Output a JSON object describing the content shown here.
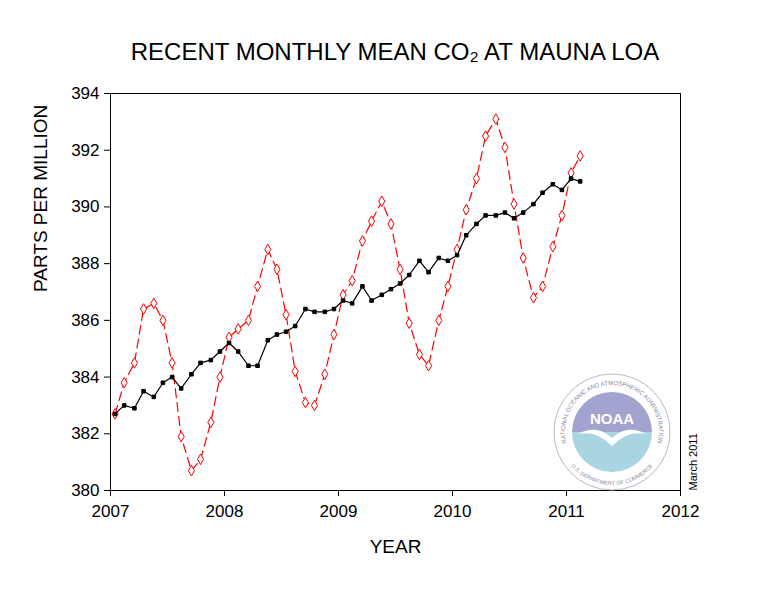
{
  "chart_data": {
    "type": "line",
    "title": "RECENT MONTHLY MEAN CO₂ AT MAUNA LOA",
    "x_label": "YEAR",
    "y_label": "PARTS PER MILLION",
    "annotations": [
      "March 2011",
      "NOAA",
      "NATIONAL OCEANIC AND ATMOSPHERIC ADMINISTRATION",
      "U.S. DEPARTMENT OF COMMERCE"
    ],
    "x": [
      2007.04,
      2007.12,
      2007.21,
      2007.29,
      2007.38,
      2007.46,
      2007.54,
      2007.62,
      2007.71,
      2007.79,
      2007.88,
      2007.96,
      2008.04,
      2008.12,
      2008.21,
      2008.29,
      2008.38,
      2008.46,
      2008.54,
      2008.62,
      2008.71,
      2008.79,
      2008.88,
      2008.96,
      2009.04,
      2009.12,
      2009.21,
      2009.29,
      2009.38,
      2009.46,
      2009.54,
      2009.62,
      2009.71,
      2009.79,
      2009.88,
      2009.96,
      2010.04,
      2010.12,
      2010.21,
      2010.29,
      2010.38,
      2010.46,
      2010.54,
      2010.62,
      2010.71,
      2010.79,
      2010.88,
      2010.96,
      2011.04,
      2011.12
    ],
    "series": [
      {
        "color": "#ff0000",
        "line_style": "dashed",
        "marker": "diamond",
        "values": [
          382.7,
          383.8,
          384.5,
          386.4,
          386.6,
          386.0,
          384.5,
          381.9,
          380.7,
          381.1,
          382.4,
          384.0,
          385.4,
          385.7,
          386.0,
          387.2,
          388.5,
          387.8,
          386.2,
          384.2,
          383.1,
          383.0,
          384.1,
          385.5,
          386.9,
          387.4,
          388.8,
          389.5,
          390.2,
          389.4,
          387.8,
          385.9,
          384.8,
          384.4,
          386.0,
          387.2,
          388.5,
          389.9,
          391.0,
          392.5,
          393.1,
          392.1,
          390.1,
          388.2,
          386.8,
          387.2,
          388.6,
          389.7,
          391.2,
          391.8
        ]
      },
      {
        "color": "#000000",
        "line_style": "solid",
        "marker": "square",
        "values": [
          382.7,
          383.0,
          382.9,
          383.5,
          383.3,
          383.8,
          384.0,
          383.6,
          384.1,
          384.5,
          384.6,
          384.9,
          385.2,
          384.9,
          384.4,
          384.4,
          385.3,
          385.5,
          385.6,
          385.8,
          386.4,
          386.3,
          386.3,
          386.4,
          386.7,
          386.6,
          387.2,
          386.7,
          386.9,
          387.1,
          387.3,
          387.6,
          388.1,
          387.7,
          388.2,
          388.1,
          388.3,
          389.0,
          389.4,
          389.7,
          389.7,
          389.8,
          389.6,
          389.8,
          390.1,
          390.5,
          390.8,
          390.6,
          391.0,
          390.9
        ]
      }
    ],
    "xlim": [
      2007,
      2012
    ],
    "xticks": [
      2007,
      2008,
      2009,
      2010,
      2011,
      2012
    ],
    "ylim": [
      380,
      394
    ],
    "yticks": [
      380,
      382,
      384,
      386,
      388,
      390,
      392,
      394
    ],
    "grid": false
  }
}
